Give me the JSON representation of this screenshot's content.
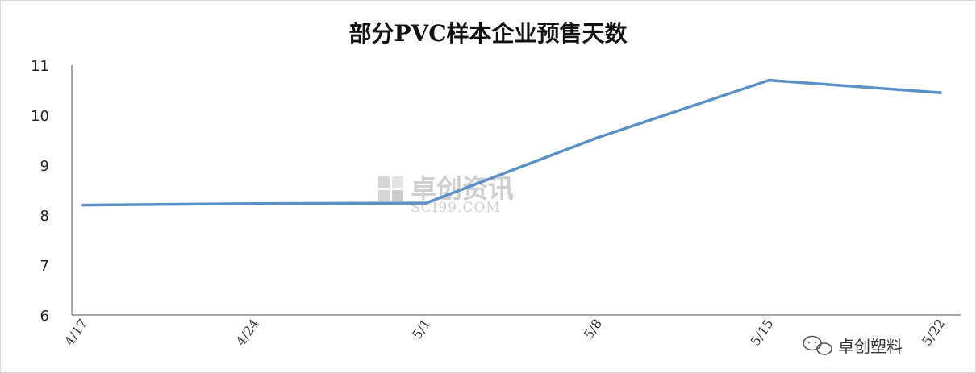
{
  "chart_data": {
    "type": "line",
    "title": "部分PVC样本企业预售天数",
    "categories": [
      "4/17",
      "4/24",
      "5/1",
      "5/8",
      "5/15",
      "5/22"
    ],
    "series": [
      {
        "values": [
          8.2,
          8.23,
          8.24,
          9.55,
          10.7,
          10.45
        ]
      }
    ],
    "ylim": [
      6,
      11
    ],
    "yticks": [
      6,
      7,
      8,
      9,
      10,
      11
    ],
    "grid": false,
    "legend": "none",
    "line_color": "#5b8fc7"
  },
  "watermark": {
    "text_cn": "卓创资讯",
    "text_en": "SCI99.COM"
  },
  "brand": {
    "text": "卓创塑料",
    "icon": "wechat-icon"
  }
}
